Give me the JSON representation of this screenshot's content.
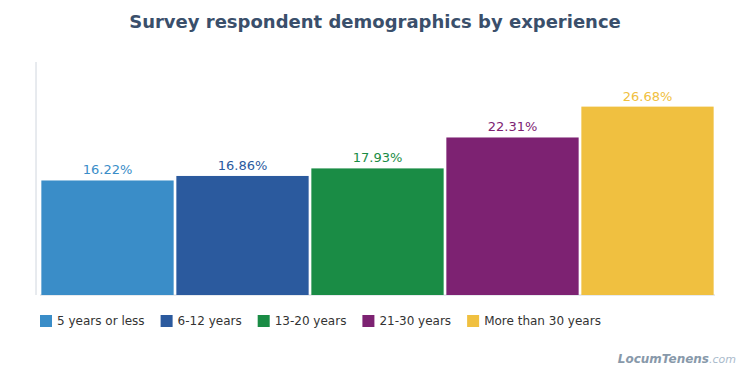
{
  "chart_data": {
    "type": "bar",
    "title": "Survey respondent demographics by experience",
    "categories": [
      "5 years or less",
      "6-12 years",
      "13-20 years",
      "21-30 years",
      "More than 30 years"
    ],
    "values": [
      16.22,
      16.86,
      17.93,
      22.31,
      26.68
    ],
    "value_labels": [
      "16.22%",
      "16.86%",
      "17.93%",
      "22.31%",
      "26.68%"
    ],
    "colors": [
      "#3A8DC8",
      "#2B5A9E",
      "#1A8C45",
      "#7D2272",
      "#F0C040"
    ],
    "ylim": [
      0,
      33
    ],
    "data_labels": true,
    "tick_labels": false,
    "grid": false,
    "legend": "lower left",
    "annotations": [
      "LocumTenens",
      ".com"
    ]
  }
}
